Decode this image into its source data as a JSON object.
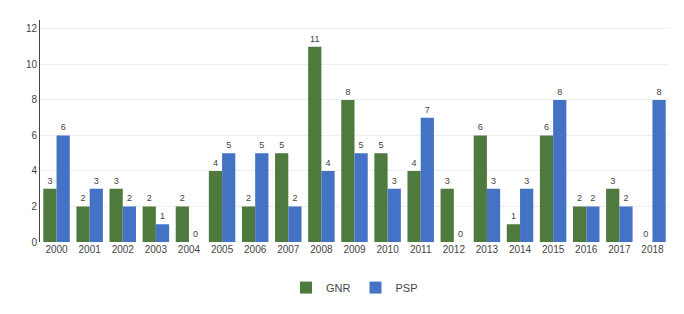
{
  "chart_data": {
    "type": "bar",
    "categories": [
      "2000",
      "2001",
      "2002",
      "2003",
      "2004",
      "2005",
      "2006",
      "2007",
      "2008",
      "2009",
      "2010",
      "2011",
      "2012",
      "2013",
      "2014",
      "2015",
      "2016",
      "2017",
      "2018"
    ],
    "series": [
      {
        "name": "GNR",
        "color": "#4e7a3e",
        "values": [
          3,
          2,
          3,
          2,
          2,
          4,
          2,
          5,
          11,
          8,
          5,
          4,
          3,
          6,
          1,
          6,
          2,
          3,
          0
        ]
      },
      {
        "name": "PSP",
        "color": "#4472c4",
        "values": [
          6,
          3,
          2,
          1,
          0,
          5,
          5,
          2,
          4,
          5,
          3,
          7,
          0,
          3,
          3,
          8,
          2,
          2,
          8
        ]
      }
    ],
    "ylim": [
      0,
      12.5
    ],
    "yticks": [
      0,
      2,
      4,
      6,
      8,
      10,
      12
    ],
    "grid": true,
    "data_labels": true,
    "legend": "bottom"
  }
}
